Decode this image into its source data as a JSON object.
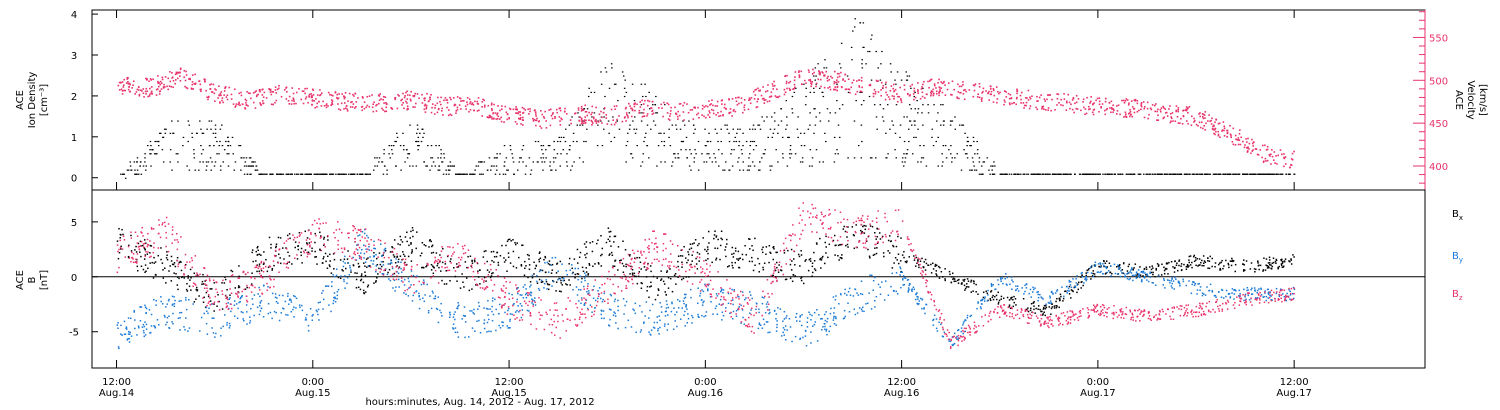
{
  "colors": {
    "black": "#000000",
    "blue": "#1a7ad6",
    "red": "#e8336b"
  },
  "chart_data": [
    {
      "type": "scatter",
      "panel": "top",
      "left_axis_label": [
        "ACE",
        "Ion Density",
        "[cm⁻³]"
      ],
      "right_axis_label": [
        "ACE",
        "Velocity",
        "[km/s]"
      ],
      "ylim": [
        -0.3,
        4.1
      ],
      "ylim_right": [
        372,
        582
      ],
      "y_ticks": [
        0,
        1,
        2,
        3,
        4
      ],
      "y_tick_labels": [
        "0",
        "1",
        "2",
        "3",
        "4"
      ],
      "y_ticks_right": [
        400,
        450,
        500,
        550
      ],
      "y_tick_labels_right": [
        "400",
        "450",
        "500",
        "550"
      ],
      "series": [
        {
          "axis": "left",
          "color": "#000000",
          "x": [
            0,
            3,
            6,
            9,
            12,
            15,
            18,
            21,
            24,
            27,
            30,
            33,
            36,
            39,
            42,
            45,
            48,
            51,
            54,
            57,
            60,
            63,
            66,
            69,
            72
          ],
          "y": [
            0.1,
            0.8,
            0.9,
            0.1,
            0.05,
            0.1,
            0.9,
            0.1,
            0.5,
            0.6,
            1.8,
            1.2,
            0.7,
            0.8,
            1.4,
            2.4,
            1.6,
            1.0,
            0.1,
            0.05,
            0.05,
            0.05,
            0.05,
            0.05,
            0.05
          ]
        },
        {
          "axis": "right",
          "color": "#e8336b",
          "x": [
            0,
            2,
            4,
            6,
            8,
            10,
            12,
            14,
            16,
            18,
            20,
            22,
            24,
            26,
            28,
            30,
            32,
            34,
            36,
            38,
            40,
            42,
            44,
            46,
            48,
            50,
            52,
            54,
            56,
            58,
            60,
            62,
            64,
            66,
            68,
            70,
            72
          ],
          "y": [
            495,
            492,
            505,
            485,
            478,
            484,
            480,
            476,
            474,
            478,
            470,
            472,
            460,
            455,
            462,
            458,
            468,
            464,
            466,
            470,
            488,
            505,
            500,
            492,
            486,
            492,
            488,
            482,
            478,
            474,
            470,
            468,
            463,
            458,
            440,
            415,
            408
          ]
        }
      ]
    },
    {
      "type": "scatter",
      "panel": "bottom",
      "left_axis_label": [
        "ACE",
        "B",
        "[nT]"
      ],
      "ylim": [
        -8.3,
        7.9
      ],
      "y_ticks": [
        -5,
        0,
        5
      ],
      "y_tick_labels": [
        "-5",
        "0",
        "5"
      ],
      "series": [
        {
          "name": "Bx",
          "color": "#000000",
          "x": [
            0,
            3,
            6,
            9,
            12,
            15,
            18,
            21,
            24,
            27,
            30,
            33,
            36,
            39,
            42,
            45,
            48,
            51,
            54,
            57,
            60,
            63,
            66,
            69,
            72
          ],
          "y": [
            3,
            1,
            -2,
            2,
            3,
            0,
            3,
            0,
            2,
            0,
            3,
            -1,
            3,
            2,
            1,
            4,
            2,
            0,
            -2,
            -3,
            1,
            0.5,
            1.5,
            1,
            1.5
          ]
        },
        {
          "name": "By",
          "color": "#1a7ad6",
          "x": [
            0,
            3,
            6,
            9,
            12,
            15,
            18,
            21,
            24,
            27,
            30,
            33,
            36,
            39,
            42,
            45,
            48,
            51,
            54,
            57,
            60,
            63,
            66,
            69,
            72
          ],
          "y": [
            -5,
            -3,
            -4,
            -2,
            -4,
            3,
            -1,
            -4,
            -3,
            1,
            -3,
            -4,
            -2,
            -3,
            -5,
            -2,
            0,
            -6,
            0,
            -2,
            1,
            0,
            -1,
            -1.5,
            -1.5
          ]
        },
        {
          "name": "Bz",
          "color": "#e8336b",
          "x": [
            0,
            3,
            6,
            9,
            12,
            15,
            18,
            21,
            24,
            27,
            30,
            33,
            36,
            39,
            42,
            45,
            48,
            51,
            54,
            57,
            60,
            63,
            66,
            69,
            72
          ],
          "y": [
            2,
            4,
            -2,
            0,
            4,
            3,
            0,
            2,
            -2,
            -4,
            -1,
            3,
            0,
            -4,
            6,
            4,
            5,
            -6,
            -3,
            -4,
            -3,
            -3.5,
            -3,
            -2,
            -1.5
          ]
        }
      ]
    }
  ],
  "x_axis": {
    "xlim": [
      -1.5,
      80
    ],
    "ticks": [
      0,
      12,
      24,
      36,
      48,
      60,
      72
    ],
    "tick_labels": [
      [
        "12:00",
        "Aug.14"
      ],
      [
        "0:00",
        "Aug.15"
      ],
      [
        "12:00",
        "Aug.15"
      ],
      [
        "0:00",
        "Aug.16"
      ],
      [
        "12:00",
        "Aug.16"
      ],
      [
        "0:00",
        "Aug.17"
      ],
      [
        "12:00",
        "Aug.17"
      ]
    ],
    "title": "hours:minutes, Aug. 14, 2012 - Aug. 17, 2012"
  },
  "legend": {
    "items": [
      {
        "base": "B",
        "sub": "x",
        "color": "#000000"
      },
      {
        "base": "B",
        "sub": "y",
        "color": "#1a7ad6"
      },
      {
        "base": "B",
        "sub": "z",
        "color": "#e8336b"
      }
    ]
  }
}
